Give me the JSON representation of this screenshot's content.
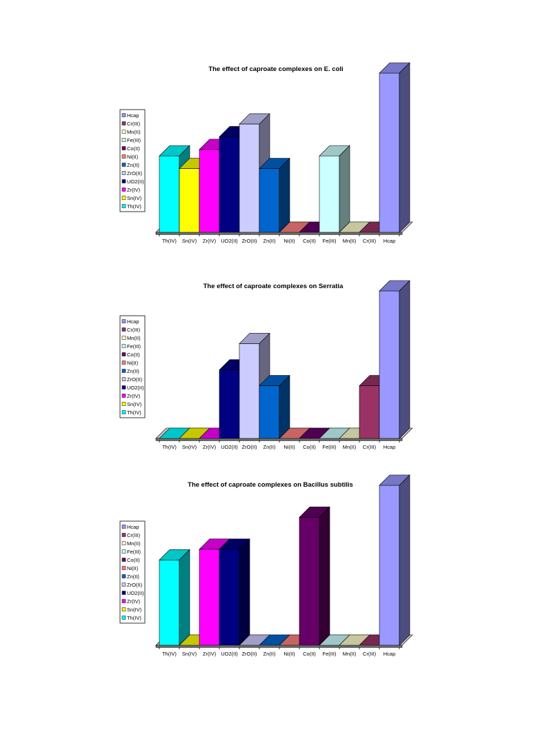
{
  "legend_order": [
    "Hcap",
    "Cr(III)",
    "Mn(II)",
    "Fe(III)",
    "Co(II)",
    "Ni(II)",
    "Zn(II)",
    "ZrO(II)",
    "UO2(II)",
    "Zr(IV)",
    "Sn(IV)",
    "Th(IV)"
  ],
  "colors": {
    "Th(IV)": "#00ffff",
    "Sn(IV)": "#ffff00",
    "Zr(IV)": "#ff00ff",
    "UO2(II)": "#000080",
    "ZrO(II)": "#ccccff",
    "Zn(II)": "#0066cc",
    "Ni(II)": "#ff8080",
    "Co(II)": "#660066",
    "Fe(III)": "#ccffff",
    "Mn(II)": "#ffffcc",
    "Cr(III)": "#993366",
    "Hcap": "#9999ff"
  },
  "chart_data": [
    {
      "type": "bar",
      "title": "The effect of caproate complexes on E. coli",
      "categories": [
        "Th(IV)",
        "Sn(IV)",
        "Zr(IV)",
        "UO2(II)",
        "ZrO(II)",
        "Zn(II)",
        "Ni(II)",
        "Co(II)",
        "Fe(III)",
        "Mn(II)",
        "Cr(III)",
        "Hcap"
      ],
      "values": [
        12,
        10,
        13,
        15,
        17,
        10,
        0,
        0,
        12,
        0,
        0,
        25
      ],
      "ylim": [
        0,
        25
      ],
      "legend": "left"
    },
    {
      "type": "bar",
      "title": "The effect of caproate complexes on Serratia",
      "categories": [
        "Th(IV)",
        "Sn(IV)",
        "Zr(IV)",
        "UO2(II)",
        "ZrO(II)",
        "Zn(II)",
        "Ni(II)",
        "Co(II)",
        "Fe(III)",
        "Mn(II)",
        "Cr(III)",
        "Hcap"
      ],
      "values": [
        0,
        0,
        0,
        13,
        18,
        10,
        0,
        0,
        0,
        0,
        10,
        28
      ],
      "ylim": [
        0,
        28
      ],
      "legend": "left"
    },
    {
      "type": "bar",
      "title": "The effect of caproate complexes on Bacillus subtilis",
      "categories": [
        "Th(IV)",
        "Sn(IV)",
        "Zr(IV)",
        "UO2(II)",
        "ZrO(II)",
        "Zn(II)",
        "Ni(II)",
        "Co(II)",
        "Fe(III)",
        "Mn(II)",
        "Cr(III)",
        "Hcap"
      ],
      "values": [
        16,
        0,
        18,
        18,
        0,
        0,
        0,
        24,
        0,
        0,
        0,
        30
      ],
      "ylim": [
        0,
        30
      ],
      "legend": "left"
    }
  ]
}
